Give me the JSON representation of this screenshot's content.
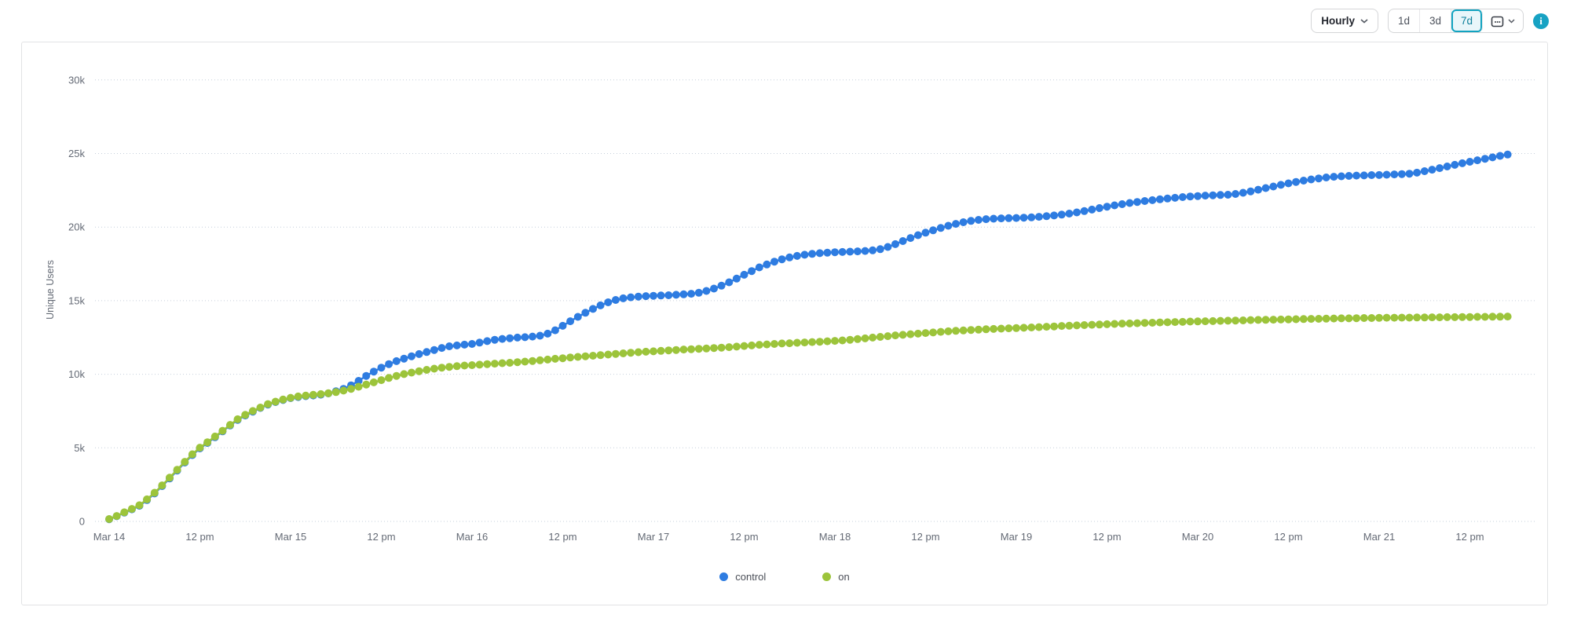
{
  "toolbar": {
    "granularity_label": "Hourly",
    "range_buttons": [
      {
        "label": "1d",
        "selected": false
      },
      {
        "label": "3d",
        "selected": false
      },
      {
        "label": "7d",
        "selected": true
      }
    ],
    "accent_color": "#12a3c0"
  },
  "chart_data": {
    "type": "line",
    "title": "",
    "xlabel": "",
    "ylabel": "Unique Users",
    "point_interval": "hourly",
    "x_start": "Mar 14 12:00 am",
    "x_end": "Mar 21 5:00 pm",
    "ylim": [
      0,
      30000
    ],
    "grid": "horizontal-dotted",
    "legend_position": "bottom-center",
    "y_ticks": [
      {
        "value": 0,
        "label": "0"
      },
      {
        "value": 5000,
        "label": "5k"
      },
      {
        "value": 10000,
        "label": "10k"
      },
      {
        "value": 15000,
        "label": "15k"
      },
      {
        "value": 20000,
        "label": "20k"
      },
      {
        "value": 25000,
        "label": "25k"
      },
      {
        "value": 30000,
        "label": "30k"
      }
    ],
    "x_ticks": [
      {
        "hour": 0,
        "label": "Mar 14"
      },
      {
        "hour": 12,
        "label": "12 pm"
      },
      {
        "hour": 24,
        "label": "Mar 15"
      },
      {
        "hour": 36,
        "label": "12 pm"
      },
      {
        "hour": 48,
        "label": "Mar 16"
      },
      {
        "hour": 60,
        "label": "12 pm"
      },
      {
        "hour": 72,
        "label": "Mar 17"
      },
      {
        "hour": 84,
        "label": "12 pm"
      },
      {
        "hour": 96,
        "label": "Mar 18"
      },
      {
        "hour": 108,
        "label": "12 pm"
      },
      {
        "hour": 120,
        "label": "Mar 19"
      },
      {
        "hour": 132,
        "label": "12 pm"
      },
      {
        "hour": 144,
        "label": "Mar 20"
      },
      {
        "hour": 156,
        "label": "12 pm"
      },
      {
        "hour": 168,
        "label": "Mar 21"
      },
      {
        "hour": 180,
        "label": "12 pm"
      }
    ],
    "series": [
      {
        "name": "control",
        "color": "#2e7ce1",
        "values": [
          150,
          350,
          600,
          820,
          1060,
          1450,
          1900,
          2400,
          2920,
          3460,
          4000,
          4510,
          4960,
          5330,
          5720,
          6120,
          6520,
          6900,
          7200,
          7460,
          7710,
          7940,
          8110,
          8250,
          8380,
          8450,
          8510,
          8560,
          8610,
          8700,
          8840,
          9010,
          9250,
          9550,
          9890,
          10180,
          10450,
          10690,
          10890,
          11060,
          11220,
          11370,
          11510,
          11650,
          11790,
          11900,
          11960,
          12010,
          12060,
          12150,
          12250,
          12340,
          12400,
          12450,
          12490,
          12520,
          12560,
          12620,
          12760,
          12990,
          13290,
          13600,
          13900,
          14180,
          14440,
          14680,
          14890,
          15050,
          15160,
          15230,
          15280,
          15310,
          15330,
          15350,
          15370,
          15400,
          15430,
          15470,
          15540,
          15660,
          15820,
          16020,
          16250,
          16500,
          16760,
          17010,
          17260,
          17460,
          17650,
          17810,
          17940,
          18040,
          18120,
          18180,
          18230,
          18260,
          18290,
          18310,
          18330,
          18350,
          18380,
          18420,
          18500,
          18650,
          18840,
          19050,
          19260,
          19450,
          19620,
          19780,
          19940,
          20090,
          20220,
          20330,
          20420,
          20490,
          20540,
          20570,
          20590,
          20610,
          20620,
          20640,
          20660,
          20700,
          20740,
          20790,
          20850,
          20920,
          21000,
          21090,
          21190,
          21290,
          21390,
          21480,
          21560,
          21640,
          21710,
          21770,
          21830,
          21890,
          21940,
          21990,
          22040,
          22080,
          22110,
          22140,
          22160,
          22180,
          22200,
          22250,
          22330,
          22430,
          22540,
          22650,
          22760,
          22870,
          22970,
          23070,
          23160,
          23240,
          23310,
          23370,
          23420,
          23450,
          23480,
          23500,
          23510,
          23530,
          23540,
          23560,
          23580,
          23600,
          23630,
          23700,
          23800,
          23900,
          24010,
          24120,
          24230,
          24340,
          24440,
          24540,
          24640,
          24740,
          24840,
          24930
        ]
      },
      {
        "name": "on",
        "color": "#9cc43b",
        "values": [
          160,
          370,
          620,
          850,
          1100,
          1500,
          1950,
          2450,
          2970,
          3510,
          4050,
          4560,
          5010,
          5380,
          5770,
          6160,
          6560,
          6940,
          7240,
          7500,
          7740,
          7970,
          8140,
          8280,
          8400,
          8490,
          8550,
          8600,
          8650,
          8710,
          8790,
          8890,
          9010,
          9150,
          9300,
          9450,
          9600,
          9750,
          9890,
          10010,
          10110,
          10210,
          10300,
          10380,
          10450,
          10500,
          10550,
          10590,
          10620,
          10650,
          10690,
          10720,
          10750,
          10780,
          10820,
          10860,
          10900,
          10950,
          11000,
          11050,
          11090,
          11140,
          11180,
          11220,
          11260,
          11300,
          11340,
          11380,
          11420,
          11460,
          11500,
          11530,
          11560,
          11590,
          11620,
          11650,
          11680,
          11700,
          11730,
          11750,
          11780,
          11810,
          11840,
          11880,
          11920,
          11960,
          12000,
          12030,
          12060,
          12090,
          12110,
          12140,
          12160,
          12190,
          12210,
          12240,
          12270,
          12300,
          12340,
          12390,
          12440,
          12490,
          12540,
          12590,
          12640,
          12680,
          12720,
          12760,
          12800,
          12840,
          12880,
          12920,
          12950,
          12980,
          13010,
          13030,
          13060,
          13080,
          13100,
          13120,
          13140,
          13160,
          13180,
          13200,
          13230,
          13250,
          13280,
          13300,
          13320,
          13340,
          13360,
          13380,
          13400,
          13420,
          13440,
          13450,
          13470,
          13490,
          13500,
          13520,
          13530,
          13550,
          13560,
          13580,
          13590,
          13600,
          13610,
          13630,
          13640,
          13650,
          13660,
          13680,
          13690,
          13700,
          13710,
          13720,
          13730,
          13740,
          13750,
          13760,
          13770,
          13780,
          13790,
          13800,
          13800,
          13810,
          13820,
          13820,
          13830,
          13840,
          13840,
          13850,
          13850,
          13860,
          13860,
          13870,
          13870,
          13880,
          13880,
          13890,
          13890,
          13900,
          13900,
          13910,
          13910,
          13920
        ]
      }
    ]
  }
}
